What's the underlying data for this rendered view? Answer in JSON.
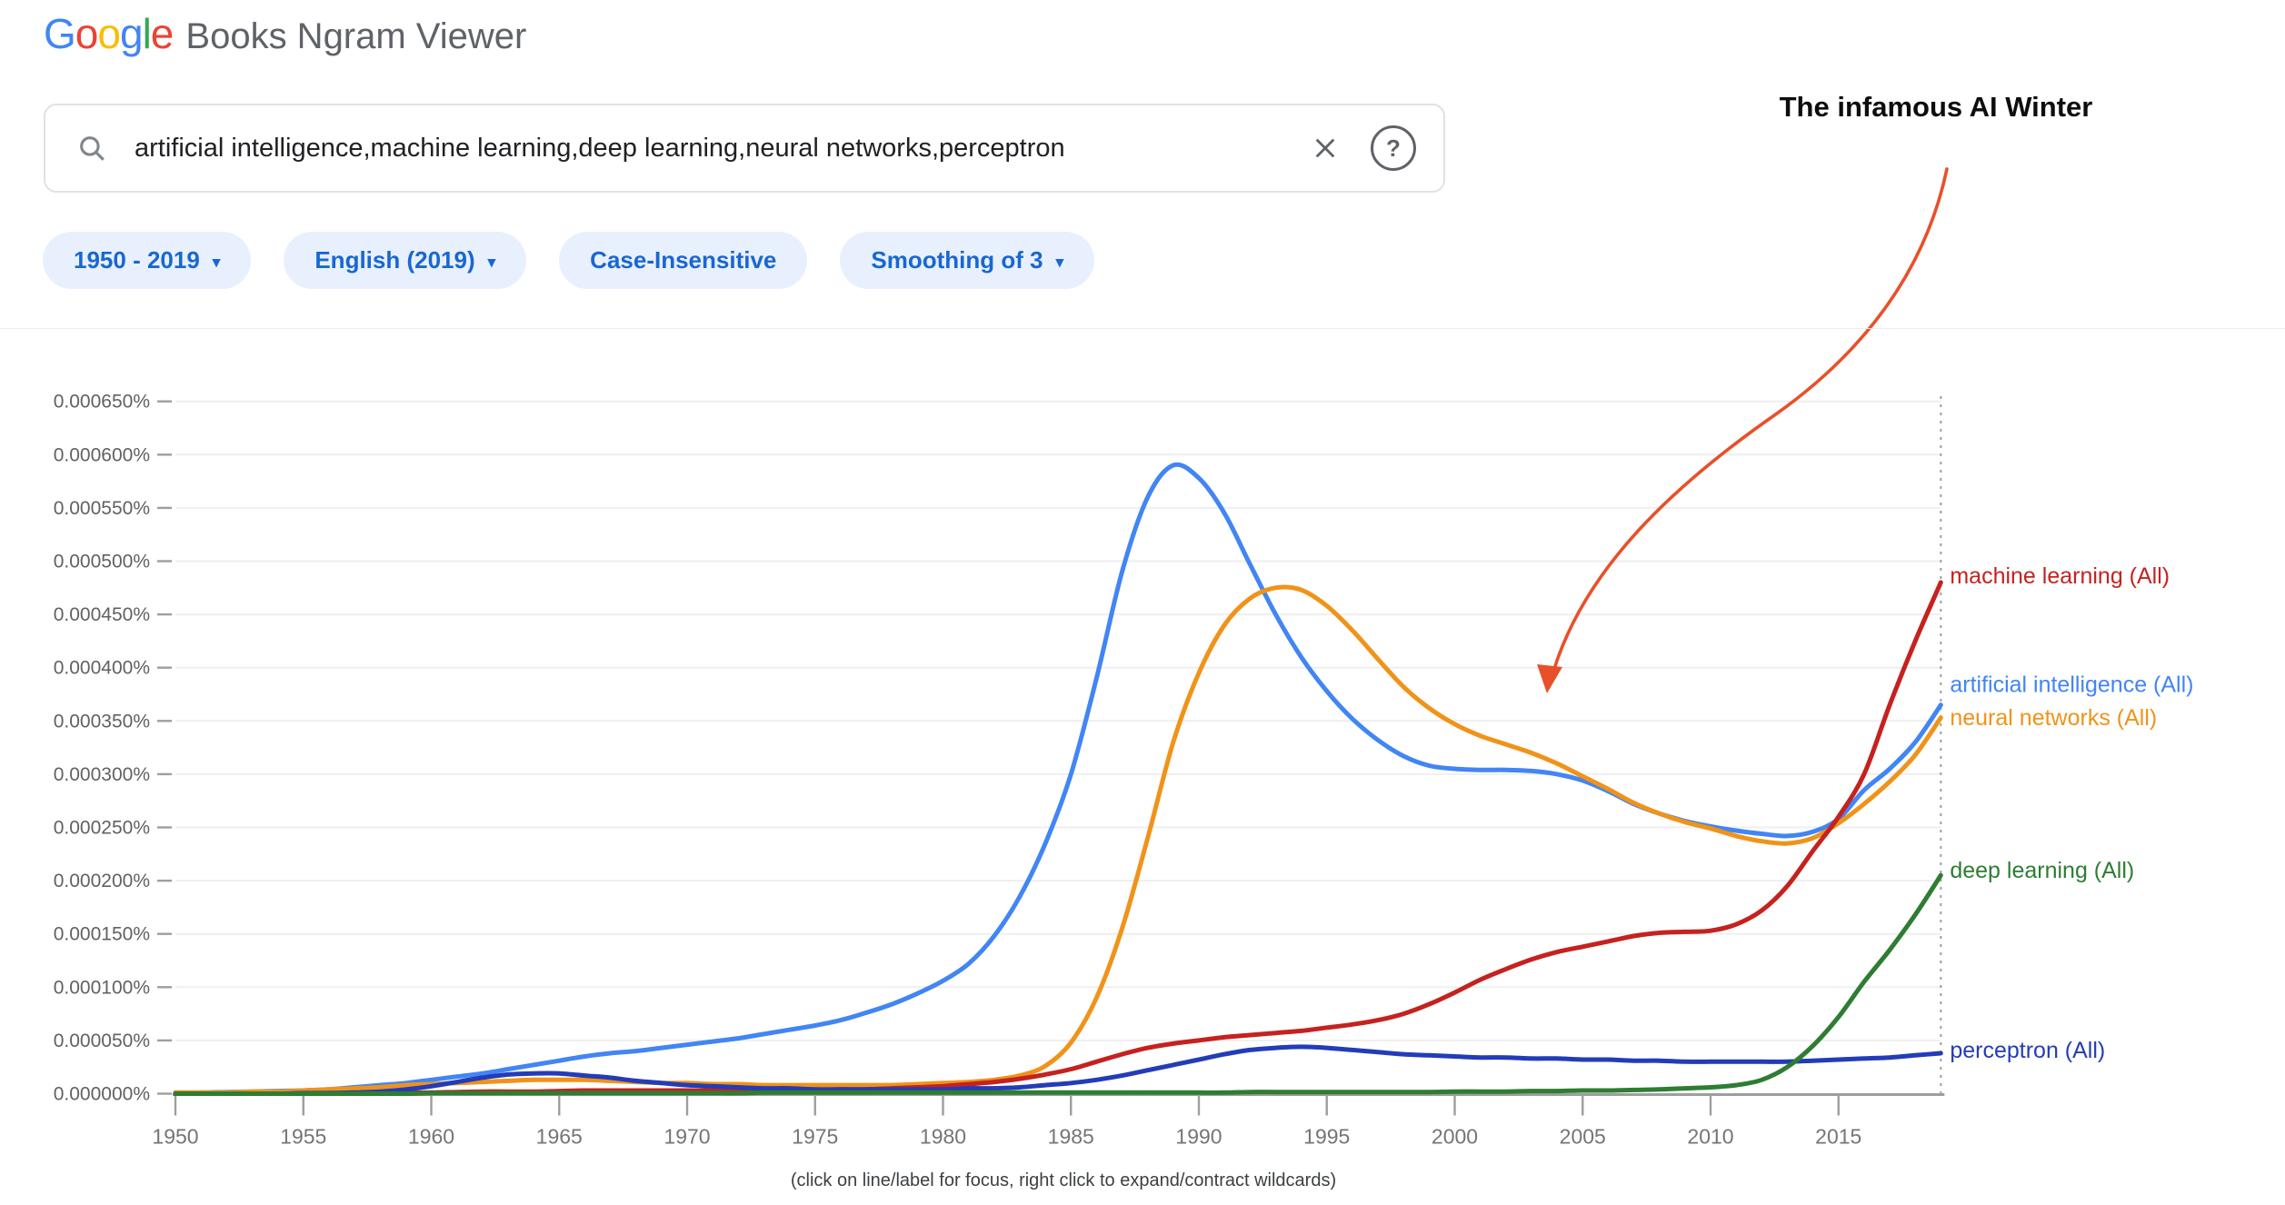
{
  "header": {
    "logo_letters": [
      {
        "ch": "G",
        "color": "#4285F4"
      },
      {
        "ch": "o",
        "color": "#EA4335"
      },
      {
        "ch": "o",
        "color": "#FBBC05"
      },
      {
        "ch": "g",
        "color": "#4285F4"
      },
      {
        "ch": "l",
        "color": "#34A853"
      },
      {
        "ch": "e",
        "color": "#EA4335"
      }
    ],
    "app_title": "Books Ngram Viewer"
  },
  "search": {
    "query": "artificial intelligence,machine learning,deep learning,neural networks,perceptron"
  },
  "filters": [
    {
      "label": "1950 - 2019",
      "has_dropdown": true
    },
    {
      "label": "English (2019)",
      "has_dropdown": true
    },
    {
      "label": "Case-Insensitive",
      "has_dropdown": false
    },
    {
      "label": "Smoothing of 3",
      "has_dropdown": true
    }
  ],
  "annotation": {
    "text": "The infamous AI Winter",
    "arrow_color": "#e8502a"
  },
  "footer_note": "(click on line/label for focus, right click to expand/contract wildcards)",
  "chart_data": {
    "type": "line",
    "title": "",
    "xlabel": "",
    "ylabel": "",
    "x_start": 1950,
    "x_end": 2019,
    "x_step": 1,
    "x_ticks": [
      1950,
      1955,
      1960,
      1965,
      1970,
      1975,
      1980,
      1985,
      1990,
      1995,
      2000,
      2005,
      2010,
      2015
    ],
    "y_unit": "percent x 1e-6",
    "ylim": [
      0,
      680
    ],
    "y_tick_step": 50,
    "y_tick_labels": [
      "0.000000%",
      "0.000050%",
      "0.000100%",
      "0.000150%",
      "0.000200%",
      "0.000250%",
      "0.000300%",
      "0.000350%",
      "0.000400%",
      "0.000450%",
      "0.000500%",
      "0.000550%",
      "0.000600%",
      "0.000650%"
    ],
    "grid": true,
    "legend_position": "line-end-labels-right",
    "series": [
      {
        "name": "artificial intelligence (All)",
        "color": "#4285f4",
        "label_dy": -22,
        "values": [
          1,
          1,
          1.5,
          2,
          2.5,
          3,
          4,
          6,
          8,
          10,
          13,
          16,
          19,
          23,
          27,
          31,
          35,
          38,
          40,
          43,
          46,
          49,
          52,
          56,
          60,
          64,
          69,
          76,
          84,
          94,
          106,
          122,
          148,
          185,
          235,
          300,
          390,
          490,
          560,
          590,
          578,
          545,
          497,
          450,
          410,
          378,
          352,
          332,
          317,
          308,
          305,
          304,
          304,
          303,
          300,
          294,
          284,
          272,
          263,
          256,
          251,
          247,
          244,
          242,
          246,
          258,
          285,
          305,
          330,
          365
        ]
      },
      {
        "name": "neural networks (All)",
        "color": "#f0931a",
        "label_dy": 0,
        "values": [
          1,
          1,
          1,
          2,
          2,
          3,
          4,
          5,
          6,
          8,
          9,
          10,
          11,
          12,
          13,
          13,
          13,
          12,
          11,
          10,
          10,
          9,
          9,
          8,
          8,
          8,
          8,
          8,
          8,
          9,
          10,
          11,
          13,
          17,
          26,
          48,
          90,
          155,
          240,
          330,
          395,
          440,
          465,
          475,
          473,
          458,
          435,
          408,
          382,
          362,
          347,
          336,
          328,
          320,
          310,
          298,
          286,
          273,
          263,
          255,
          249,
          242,
          237,
          235,
          240,
          254,
          272,
          293,
          318,
          353
        ]
      },
      {
        "name": "machine learning (All)",
        "color": "#c5221f",
        "label_dy": -7,
        "values": [
          0,
          0,
          0,
          0,
          0,
          0,
          0.5,
          0.5,
          1,
          1,
          1,
          1.5,
          2,
          2,
          2,
          2.5,
          3,
          3,
          3,
          3,
          3,
          3,
          3,
          3,
          3,
          3.5,
          4,
          4,
          5,
          6,
          7,
          9,
          11,
          14,
          18,
          23,
          30,
          37,
          43,
          47,
          50,
          53,
          55,
          57,
          59,
          62,
          65,
          69,
          75,
          84,
          95,
          107,
          117,
          126,
          133,
          138,
          143,
          148,
          151,
          152,
          153,
          159,
          172,
          195,
          228,
          260,
          300,
          365,
          425,
          480
        ]
      },
      {
        "name": "perceptron (All)",
        "color": "#233cb8",
        "label_dy": -3,
        "values": [
          0,
          0,
          0,
          0,
          0,
          0.5,
          0.5,
          1,
          2,
          4,
          7,
          11,
          15,
          18,
          19,
          19,
          17,
          15,
          12,
          10,
          8,
          7,
          6,
          5,
          5,
          4,
          4,
          4,
          4,
          4,
          4,
          5,
          5,
          6,
          8,
          10,
          13,
          17,
          22,
          27,
          32,
          37,
          41,
          43,
          44,
          43,
          41,
          39,
          37,
          36,
          35,
          34,
          34,
          33,
          33,
          32,
          32,
          31,
          31,
          30,
          30,
          30,
          30,
          30,
          31,
          32,
          33,
          34,
          36,
          38
        ]
      },
      {
        "name": "deep learning (All)",
        "color": "#2e7d32",
        "label_dy": -5,
        "values": [
          0,
          0,
          0,
          0,
          0,
          0,
          0,
          0,
          0,
          0,
          0.5,
          0.5,
          0.5,
          0.5,
          0.5,
          0.5,
          0.5,
          0.5,
          0.5,
          0.5,
          0.5,
          0.5,
          0.5,
          1,
          1,
          1,
          1,
          1,
          1,
          1,
          1,
          1,
          1,
          1,
          1,
          1,
          1,
          1,
          1,
          1,
          1,
          1,
          1.5,
          1.5,
          1.5,
          1.5,
          1.5,
          1.5,
          1.5,
          1.5,
          2,
          2,
          2,
          2.5,
          2.5,
          3,
          3,
          3.5,
          4,
          5,
          6,
          8,
          13,
          25,
          45,
          72,
          105,
          135,
          168,
          205
        ]
      }
    ]
  }
}
